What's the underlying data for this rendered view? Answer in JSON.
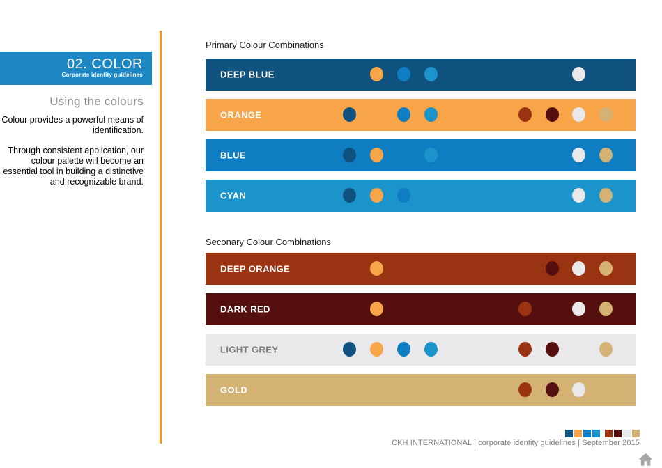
{
  "header": {
    "title": "02. COLOR",
    "subtitle": "Corporate identity guidelines"
  },
  "sidebar": {
    "heading": "Using the colours",
    "paragraphs": [
      "Colour provides a powerful means of identification.",
      "Through consistent application, our colour palette will become an essential tool in building a distinctive and recognizable brand."
    ]
  },
  "palette": {
    "deep_blue": "#10527f",
    "orange": "#f8a449",
    "blue": "#0e7dc1",
    "cyan": "#1b93cb",
    "deep_orange": "#9a3311",
    "dark_red": "#540f0e",
    "light_grey": "#e9e9eb",
    "gold": "#d3b273"
  },
  "accent_line_color": "#f7941e",
  "header_box_color": "#1d87c3",
  "sections": [
    {
      "title": "Primary Colour Combinations",
      "rows": [
        {
          "label": "DEEP BLUE",
          "color": "deep_blue",
          "label_color": "#ffffff",
          "dots": [
            {
              "color": "orange",
              "col": 2
            },
            {
              "color": "blue",
              "col": 3
            },
            {
              "color": "cyan",
              "col": 4
            },
            {
              "color": "light_grey",
              "col": 7
            }
          ]
        },
        {
          "label": "ORANGE",
          "color": "orange",
          "label_color": "#ffffff",
          "dots": [
            {
              "color": "deep_blue",
              "col": 1
            },
            {
              "color": "blue",
              "col": 3
            },
            {
              "color": "cyan",
              "col": 4
            },
            {
              "color": "deep_orange",
              "col": 5
            },
            {
              "color": "dark_red",
              "col": 6
            },
            {
              "color": "light_grey",
              "col": 7
            },
            {
              "color": "gold",
              "col": 8
            }
          ]
        },
        {
          "label": "BLUE",
          "color": "blue",
          "label_color": "#ffffff",
          "dots": [
            {
              "color": "deep_blue",
              "col": 1
            },
            {
              "color": "orange",
              "col": 2
            },
            {
              "color": "cyan",
              "col": 4
            },
            {
              "color": "light_grey",
              "col": 7
            },
            {
              "color": "gold",
              "col": 8
            }
          ]
        },
        {
          "label": "CYAN",
          "color": "cyan",
          "label_color": "#ffffff",
          "dots": [
            {
              "color": "deep_blue",
              "col": 1
            },
            {
              "color": "orange",
              "col": 2
            },
            {
              "color": "blue",
              "col": 3
            },
            {
              "color": "light_grey",
              "col": 7
            },
            {
              "color": "gold",
              "col": 8
            }
          ]
        }
      ]
    },
    {
      "title": "Seconary Colour Combinations",
      "rows": [
        {
          "label": "DEEP ORANGE",
          "color": "deep_orange",
          "label_color": "#ffffff",
          "dots": [
            {
              "color": "orange",
              "col": 2
            },
            {
              "color": "dark_red",
              "col": 6
            },
            {
              "color": "light_grey",
              "col": 7
            },
            {
              "color": "gold",
              "col": 8
            }
          ]
        },
        {
          "label": "DARK RED",
          "color": "dark_red",
          "label_color": "#ffffff",
          "dots": [
            {
              "color": "orange",
              "col": 2
            },
            {
              "color": "deep_orange",
              "col": 5
            },
            {
              "color": "light_grey",
              "col": 7
            },
            {
              "color": "gold",
              "col": 8
            }
          ]
        },
        {
          "label": "LIGHT GREY",
          "color": "light_grey",
          "label_color": "#7b7b7b",
          "dots": [
            {
              "color": "deep_blue",
              "col": 1
            },
            {
              "color": "orange",
              "col": 2
            },
            {
              "color": "blue",
              "col": 3
            },
            {
              "color": "cyan",
              "col": 4
            },
            {
              "color": "deep_orange",
              "col": 5
            },
            {
              "color": "dark_red",
              "col": 6
            },
            {
              "color": "gold",
              "col": 8
            }
          ]
        },
        {
          "label": "GOLD",
          "color": "gold",
          "label_color": "#ffffff",
          "dots": [
            {
              "color": "deep_orange",
              "col": 5
            },
            {
              "color": "dark_red",
              "col": 6
            },
            {
              "color": "light_grey",
              "col": 7
            }
          ]
        }
      ]
    }
  ],
  "footer": {
    "text": "CKH INTERNATIONAL | corporate identity guidelines | September 2015",
    "swatches": [
      "deep_blue",
      "orange",
      "blue",
      "cyan",
      "gap",
      "deep_orange",
      "dark_red",
      "light_grey",
      "gold"
    ],
    "home_icon": "home-icon",
    "home_icon_color": "#a6a6a6"
  }
}
